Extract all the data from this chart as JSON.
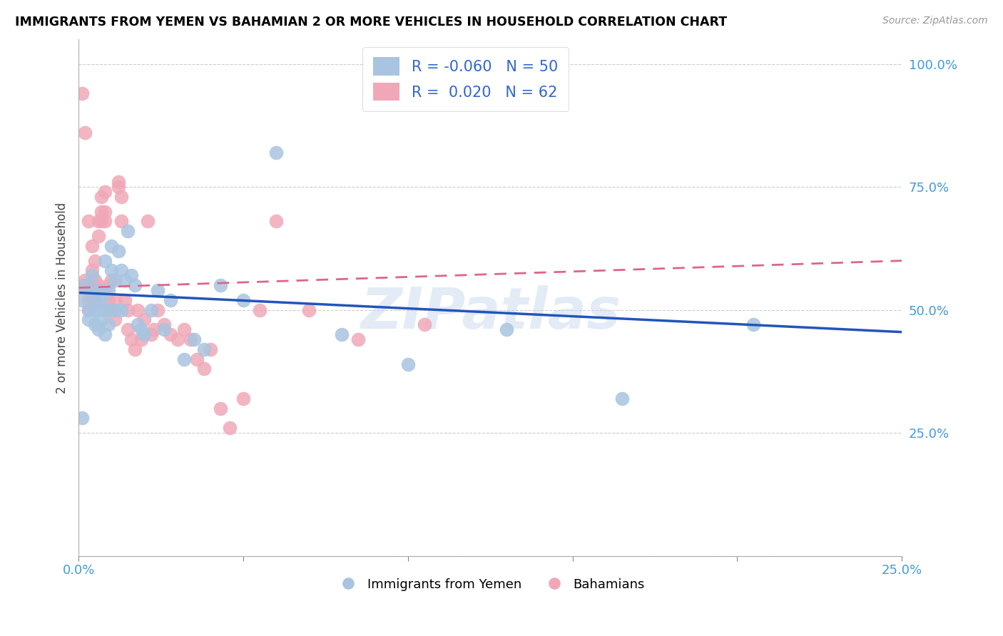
{
  "title": "IMMIGRANTS FROM YEMEN VS BAHAMIAN 2 OR MORE VEHICLES IN HOUSEHOLD CORRELATION CHART",
  "source": "Source: ZipAtlas.com",
  "ylabel": "2 or more Vehicles in Household",
  "xlabel_blue": "Immigrants from Yemen",
  "xlabel_pink": "Bahamians",
  "xlim": [
    0.0,
    0.25
  ],
  "ylim": [
    0.0,
    1.05
  ],
  "R_blue": -0.06,
  "N_blue": 50,
  "R_pink": 0.02,
  "N_pink": 62,
  "blue_color": "#a8c4e0",
  "pink_color": "#f0a8b8",
  "blue_line_color": "#2255bb",
  "pink_line_color": "#dd6688",
  "watermark": "ZIPatlas",
  "blue_line_x0": 0.0,
  "blue_line_y0": 0.535,
  "blue_line_x1": 0.25,
  "blue_line_y1": 0.455,
  "pink_line_x0": 0.0,
  "pink_line_y0": 0.545,
  "pink_line_x1": 0.25,
  "pink_line_y1": 0.6,
  "blue_scatter_x": [
    0.001,
    0.001,
    0.002,
    0.003,
    0.003,
    0.004,
    0.004,
    0.005,
    0.005,
    0.005,
    0.006,
    0.006,
    0.006,
    0.007,
    0.007,
    0.008,
    0.008,
    0.008,
    0.009,
    0.009,
    0.009,
    0.01,
    0.01,
    0.011,
    0.011,
    0.012,
    0.013,
    0.013,
    0.014,
    0.015,
    0.016,
    0.017,
    0.018,
    0.019,
    0.02,
    0.022,
    0.024,
    0.026,
    0.028,
    0.032,
    0.035,
    0.038,
    0.043,
    0.05,
    0.06,
    0.08,
    0.1,
    0.13,
    0.165,
    0.205
  ],
  "blue_scatter_y": [
    0.28,
    0.52,
    0.55,
    0.5,
    0.48,
    0.54,
    0.57,
    0.5,
    0.52,
    0.47,
    0.54,
    0.5,
    0.46,
    0.52,
    0.48,
    0.6,
    0.5,
    0.45,
    0.54,
    0.5,
    0.47,
    0.63,
    0.58,
    0.5,
    0.56,
    0.62,
    0.58,
    0.5,
    0.56,
    0.66,
    0.57,
    0.55,
    0.47,
    0.46,
    0.45,
    0.5,
    0.54,
    0.46,
    0.52,
    0.4,
    0.44,
    0.42,
    0.55,
    0.52,
    0.82,
    0.45,
    0.39,
    0.46,
    0.32,
    0.47
  ],
  "pink_scatter_x": [
    0.001,
    0.001,
    0.002,
    0.002,
    0.003,
    0.003,
    0.003,
    0.003,
    0.004,
    0.004,
    0.004,
    0.005,
    0.005,
    0.005,
    0.005,
    0.006,
    0.006,
    0.006,
    0.007,
    0.007,
    0.007,
    0.008,
    0.008,
    0.008,
    0.009,
    0.009,
    0.01,
    0.01,
    0.011,
    0.011,
    0.012,
    0.012,
    0.013,
    0.013,
    0.014,
    0.015,
    0.015,
    0.016,
    0.017,
    0.018,
    0.019,
    0.02,
    0.021,
    0.022,
    0.023,
    0.024,
    0.026,
    0.028,
    0.03,
    0.032,
    0.034,
    0.036,
    0.038,
    0.04,
    0.043,
    0.046,
    0.05,
    0.055,
    0.06,
    0.07,
    0.085,
    0.105
  ],
  "pink_scatter_y": [
    0.94,
    0.55,
    0.56,
    0.86,
    0.52,
    0.55,
    0.68,
    0.5,
    0.58,
    0.53,
    0.63,
    0.6,
    0.56,
    0.52,
    0.54,
    0.68,
    0.65,
    0.55,
    0.73,
    0.68,
    0.7,
    0.74,
    0.7,
    0.68,
    0.55,
    0.52,
    0.5,
    0.56,
    0.52,
    0.48,
    0.76,
    0.75,
    0.73,
    0.68,
    0.52,
    0.5,
    0.46,
    0.44,
    0.42,
    0.5,
    0.44,
    0.48,
    0.68,
    0.45,
    0.46,
    0.5,
    0.47,
    0.45,
    0.44,
    0.46,
    0.44,
    0.4,
    0.38,
    0.42,
    0.3,
    0.26,
    0.32,
    0.5,
    0.68,
    0.5,
    0.44,
    0.47
  ]
}
